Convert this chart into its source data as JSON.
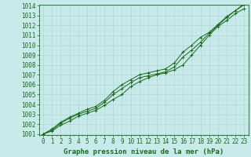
{
  "x": [
    0,
    1,
    2,
    3,
    4,
    5,
    6,
    7,
    8,
    9,
    10,
    11,
    12,
    13,
    14,
    15,
    16,
    17,
    18,
    19,
    20,
    21,
    22,
    23
  ],
  "line1": [
    1001.0,
    1001.3,
    1001.9,
    1002.3,
    1002.8,
    1003.1,
    1003.4,
    1003.9,
    1004.5,
    1005.0,
    1005.8,
    1006.3,
    1006.7,
    1007.0,
    1007.2,
    1007.5,
    1008.0,
    1009.0,
    1010.0,
    1011.0,
    1011.9,
    1012.5,
    1013.2,
    1013.7
  ],
  "line2": [
    1001.0,
    1001.4,
    1002.1,
    1002.6,
    1003.0,
    1003.3,
    1003.6,
    1004.2,
    1005.0,
    1005.6,
    1006.2,
    1006.7,
    1006.9,
    1007.1,
    1007.3,
    1007.8,
    1008.8,
    1009.5,
    1010.3,
    1011.2,
    1012.0,
    1012.8,
    1013.5,
    1014.1
  ],
  "line3": [
    1001.0,
    1001.5,
    1002.2,
    1002.7,
    1003.1,
    1003.5,
    1003.8,
    1004.4,
    1005.3,
    1006.0,
    1006.5,
    1007.0,
    1007.2,
    1007.4,
    1007.6,
    1008.2,
    1009.3,
    1010.0,
    1010.8,
    1011.3,
    1012.1,
    1012.9,
    1013.5,
    1014.2
  ],
  "ylim_min": 1001.0,
  "ylim_max": 1014.0,
  "xlim_min": -0.5,
  "xlim_max": 23.5,
  "yticks": [
    1001,
    1002,
    1003,
    1004,
    1005,
    1006,
    1007,
    1008,
    1009,
    1010,
    1011,
    1012,
    1013,
    1014
  ],
  "xticks": [
    0,
    1,
    2,
    3,
    4,
    5,
    6,
    7,
    8,
    9,
    10,
    11,
    12,
    13,
    14,
    15,
    16,
    17,
    18,
    19,
    20,
    21,
    22,
    23
  ],
  "xlabel": "Graphe pression niveau de la mer (hPa)",
  "line_color": "#1a6b1a",
  "bg_color": "#c8eaea",
  "grid_major_color": "#b0d4d4",
  "grid_minor_color": "#c0dede",
  "tick_color": "#1a6b1a",
  "label_color": "#1a6b1a",
  "marker": "+",
  "linewidth": 0.7,
  "marker_size": 3.5,
  "tick_fontsize": 5.5,
  "xlabel_fontsize": 6.5
}
